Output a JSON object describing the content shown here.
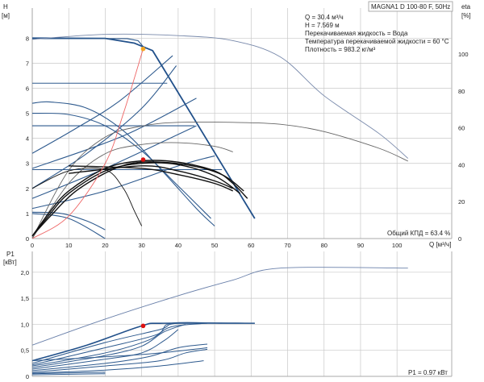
{
  "chart_data": [
    {
      "type": "line",
      "title": "MAGNA1 D 100-80 F, 50Hz",
      "y_label_top": "H",
      "y_unit_top": "[м]",
      "y2_label": "eta",
      "y2_unit": "[%]",
      "x_label": "Q [м³/ч]",
      "xlim": [
        0,
        115
      ],
      "ylim": [
        0,
        9.2
      ],
      "y2lim": [
        0,
        125
      ],
      "x_ticks": [
        0,
        10,
        20,
        30,
        40,
        50,
        60,
        70,
        80,
        90,
        100
      ],
      "y_ticks": [
        0,
        1,
        2,
        3,
        4,
        5,
        6,
        7,
        8
      ],
      "y2_ticks": [
        0,
        20,
        40,
        60,
        80,
        100
      ],
      "info": [
        "Q = 30.4 м³/ч",
        "H = 7.569 м",
        "Перекачиваемая жидкость = Вода",
        "Температура перекачиваемой жидкости = 60 °C",
        "Плотность = 983.2 кг/м³"
      ],
      "efficiency_note": "Общий КПД = 63.4 %",
      "colors": {
        "curve": "#2e5a8e",
        "max_curve": "#21508a",
        "black": "#111111",
        "system": "#ee6666",
        "marker_red": "#dd1111",
        "marker_orange": "#f5a623"
      },
      "series": [
        {
          "role": "max_curve",
          "points": [
            [
              0,
              8.0
            ],
            [
              20,
              7.99
            ],
            [
              28,
              7.8
            ],
            [
              33,
              7.5
            ],
            [
              61,
              0.8
            ]
          ]
        },
        {
          "role": "constant_pressure",
          "points": [
            [
              0,
              7.98
            ],
            [
              26,
              7.98
            ],
            [
              29,
              7.9
            ],
            [
              31,
              7.56
            ]
          ]
        },
        {
          "role": "constant_pressure",
          "points": [
            [
              0,
              6.2
            ],
            [
              37,
              6.2
            ]
          ]
        },
        {
          "role": "constant_pressure",
          "points": [
            [
              0,
              4.5
            ],
            [
              44.5,
              4.5
            ]
          ]
        },
        {
          "role": "constant_pressure",
          "points": [
            [
              0,
              2.75
            ],
            [
              52,
              2.75
            ]
          ]
        },
        {
          "role": "proportional",
          "points": [
            [
              0,
              2.0
            ],
            [
              15,
              3.4
            ],
            [
              30,
              5.2
            ],
            [
              39.5,
              6.9
            ]
          ]
        },
        {
          "role": "proportional",
          "points": [
            [
              0,
              1.6
            ],
            [
              20,
              2.8
            ],
            [
              45,
              4.5
            ]
          ]
        },
        {
          "role": "proportional",
          "points": [
            [
              0,
              3.4
            ],
            [
              12,
              4.4
            ],
            [
              24,
              5.5
            ],
            [
              38.5,
              7.3
            ]
          ]
        },
        {
          "role": "proportional",
          "points": [
            [
              0,
              2.8
            ],
            [
              25,
              4.1
            ],
            [
              45,
              5.6
            ]
          ]
        },
        {
          "role": "proportional",
          "points": [
            [
              0,
              1.2
            ],
            [
              20,
              1.9
            ],
            [
              40,
              2.9
            ],
            [
              50,
              3.3
            ]
          ]
        },
        {
          "role": "fixed_speed",
          "points": [
            [
              0,
              5.4
            ],
            [
              5,
              5.45
            ],
            [
              15,
              5.2
            ],
            [
              25,
              4.3
            ],
            [
              35,
              2.8
            ],
            [
              45,
              1.2
            ],
            [
              50,
              0.5
            ]
          ]
        },
        {
          "role": "fixed_speed",
          "points": [
            [
              0,
              5.0
            ],
            [
              10,
              4.95
            ],
            [
              20,
              4.5
            ],
            [
              30,
              3.5
            ],
            [
              40,
              2.1
            ],
            [
              49,
              0.8
            ]
          ]
        },
        {
          "role": "fixed_speed",
          "points": [
            [
              0,
              1.05
            ],
            [
              8,
              1.0
            ],
            [
              15,
              0.7
            ],
            [
              20,
              0.35
            ]
          ]
        },
        {
          "role": "fixed_speed",
          "points": [
            [
              0,
              1.0
            ],
            [
              10,
              0.8
            ],
            [
              20,
              0.0
            ]
          ]
        },
        {
          "role": "eta_max",
          "points": [
            [
              0,
              0
            ],
            [
              10,
              37
            ],
            [
              20,
              55
            ],
            [
              30,
              61
            ],
            [
              40,
              63
            ],
            [
              55,
              63
            ],
            [
              68,
              62
            ],
            [
              80,
              58
            ],
            [
              95,
              49
            ],
            [
              103,
              42
            ]
          ]
        },
        {
          "role": "eta_at_speed",
          "points": [
            [
              0,
              0
            ],
            [
              10,
              30
            ],
            [
              20,
              46
            ],
            [
              30,
              51
            ],
            [
              40,
              52
            ],
            [
              50,
              50
            ],
            [
              55,
              47
            ]
          ]
        },
        {
          "role": "h_max_outer",
          "points": [
            [
              0,
              7.95
            ],
            [
              20,
              8.15
            ],
            [
              40,
              8.1
            ],
            [
              55,
              7.9
            ],
            [
              68,
              7.25
            ],
            [
              80,
              5.7
            ],
            [
              95,
              4.2
            ],
            [
              103,
              3.2
            ]
          ]
        },
        {
          "role": "black_bundle",
          "points": [
            [
              0,
              0.1
            ],
            [
              5,
              1.1
            ],
            [
              10,
              1.9
            ],
            [
              20,
              2.8
            ],
            [
              30,
              3.1
            ],
            [
              40,
              3.05
            ],
            [
              50,
              2.7
            ],
            [
              55,
              2.2
            ],
            [
              59,
              1.6
            ]
          ]
        },
        {
          "role": "black_bundle",
          "points": [
            [
              0,
              0.1
            ],
            [
              5,
              1.0
            ],
            [
              10,
              1.8
            ],
            [
              20,
              2.7
            ],
            [
              30,
              3.0
            ],
            [
              40,
              2.95
            ],
            [
              50,
              2.5
            ],
            [
              57,
              1.8
            ]
          ]
        },
        {
          "role": "black_bundle",
          "points": [
            [
              0,
              0.1
            ],
            [
              5,
              0.9
            ],
            [
              12,
              1.9
            ],
            [
              22,
              2.75
            ],
            [
              30,
              3.05
            ],
            [
              42,
              2.95
            ],
            [
              52,
              2.55
            ],
            [
              58,
              1.9
            ]
          ]
        },
        {
          "role": "black_bundle",
          "points": [
            [
              10,
              2.6
            ],
            [
              30,
              2.9
            ],
            [
              40,
              2.7
            ],
            [
              50,
              2.3
            ],
            [
              55,
              2.0
            ]
          ]
        },
        {
          "role": "black_bundle",
          "points": [
            [
              10,
              2.9
            ],
            [
              30,
              2.8
            ],
            [
              40,
              2.55
            ],
            [
              50,
              2.2
            ],
            [
              55,
              1.9
            ]
          ]
        },
        {
          "role": "black_thin",
          "points": [
            [
              0,
              2.0
            ],
            [
              10,
              2.7
            ],
            [
              20,
              2.75
            ],
            [
              25,
              2.0
            ],
            [
              28,
              1.1
            ],
            [
              30,
              0.5
            ]
          ]
        },
        {
          "role": "system_curve",
          "points": [
            [
              0,
              0.0
            ],
            [
              10,
              0.9
            ],
            [
              20,
              3.0
            ],
            [
              25,
              5.0
            ],
            [
              30.4,
              7.57
            ]
          ]
        }
      ],
      "markers": [
        {
          "role": "operating_point",
          "x": 30.4,
          "y": 7.569
        },
        {
          "role": "eta_point",
          "x": 30.4,
          "y": 3.15
        }
      ]
    },
    {
      "type": "line",
      "y_label": "P1",
      "y_unit": "[кВт]",
      "xlim": [
        0,
        115
      ],
      "ylim": [
        0,
        2.4
      ],
      "y_ticks": [
        0.0,
        0.5,
        1.0,
        1.5,
        2.0
      ],
      "y_tick_labels": [
        "0",
        "0,5",
        "1,0",
        "1,5",
        "2,0"
      ],
      "power_note": "P1 = 0.97 кВт",
      "series": [
        {
          "role": "p1_max",
          "points": [
            [
              0,
              0.6
            ],
            [
              20,
              1.1
            ],
            [
              40,
              1.55
            ],
            [
              55,
              1.85
            ],
            [
              68,
              2.08
            ],
            [
              103,
              2.08
            ]
          ]
        },
        {
          "role": "p1_max_speed",
          "points": [
            [
              0,
              0.3
            ],
            [
              15,
              0.6
            ],
            [
              30,
              0.97
            ],
            [
              36,
              1.02
            ],
            [
              61,
              1.02
            ]
          ]
        },
        {
          "role": "p1_at_speed",
          "points": [
            [
              0,
              0.25
            ],
            [
              20,
              0.65
            ],
            [
              35,
              0.9
            ],
            [
              40,
              1.02
            ],
            [
              61,
              1.02
            ]
          ]
        },
        {
          "role": "p1_at_speed",
          "points": [
            [
              0,
              0.22
            ],
            [
              20,
              0.55
            ],
            [
              34,
              0.8
            ],
            [
              38,
              1.02
            ],
            [
              52,
              1.02
            ]
          ]
        },
        {
          "role": "p1_at_speed",
          "points": [
            [
              0,
              0.2
            ],
            [
              20,
              0.45
            ],
            [
              32,
              0.7
            ],
            [
              38,
              0.95
            ],
            [
              48,
              1.02
            ]
          ]
        },
        {
          "role": "p1_at_speed",
          "points": [
            [
              0,
              0.17
            ],
            [
              20,
              0.4
            ],
            [
              30,
              0.58
            ],
            [
              36,
              0.85
            ],
            [
              42,
              1.0
            ]
          ]
        },
        {
          "role": "p1_at_speed",
          "points": [
            [
              0,
              0.14
            ],
            [
              20,
              0.33
            ],
            [
              30,
              0.45
            ],
            [
              36,
              0.68
            ],
            [
              40,
              0.9
            ]
          ]
        },
        {
          "role": "p1_at_speed",
          "points": [
            [
              0,
              0.11
            ],
            [
              20,
              0.25
            ],
            [
              32,
              0.38
            ],
            [
              40,
              0.55
            ],
            [
              48,
              0.62
            ]
          ]
        },
        {
          "role": "p1_at_speed",
          "points": [
            [
              0,
              0.08
            ],
            [
              20,
              0.2
            ],
            [
              35,
              0.3
            ],
            [
              42,
              0.45
            ],
            [
              48,
              0.52
            ]
          ]
        },
        {
          "role": "p1_at_speed",
          "points": [
            [
              0,
              0.06
            ],
            [
              20,
              0.12
            ],
            [
              35,
              0.2
            ],
            [
              47,
              0.3
            ]
          ]
        },
        {
          "role": "p1_flat",
          "points": [
            [
              0,
              0.3
            ],
            [
              30,
              0.42
            ],
            [
              48,
              0.55
            ]
          ]
        },
        {
          "role": "p1_flat",
          "points": [
            [
              0,
              0.05
            ],
            [
              20,
              0.08
            ]
          ]
        },
        {
          "role": "p1_flat",
          "points": [
            [
              0,
              0.03
            ],
            [
              20,
              0.05
            ]
          ]
        }
      ],
      "markers": [
        {
          "role": "operating_point",
          "x": 30.4,
          "y": 0.97
        }
      ]
    }
  ]
}
